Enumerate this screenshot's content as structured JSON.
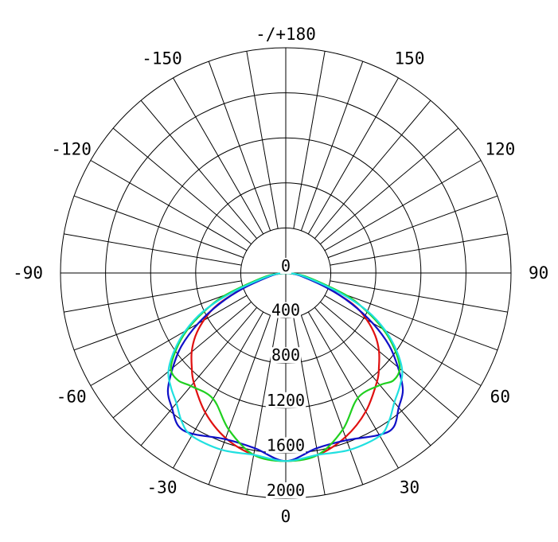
{
  "chart_data": {
    "type": "line",
    "subtype": "polar",
    "title": "",
    "angle_labels": [
      {
        "text": "-/+180",
        "angle": 180
      },
      {
        "text": "150",
        "angle": 150
      },
      {
        "text": "-150",
        "angle": -150
      },
      {
        "text": "120",
        "angle": 120
      },
      {
        "text": "-120",
        "angle": -120
      },
      {
        "text": "90",
        "angle": 90
      },
      {
        "text": "-90",
        "angle": -90
      },
      {
        "text": "60",
        "angle": 60
      },
      {
        "text": "-60",
        "angle": -60
      },
      {
        "text": "30",
        "angle": 30
      },
      {
        "text": "-30",
        "angle": -30
      },
      {
        "text": "0",
        "angle": 0
      }
    ],
    "radial_ticks": [
      0,
      400,
      800,
      1200,
      1600,
      2000
    ],
    "radial_labels": [
      "0",
      "400",
      "800",
      "1200",
      "1600",
      "2000"
    ],
    "rlim": [
      0,
      2000
    ],
    "angle_step": 10,
    "grid": true,
    "series": [
      {
        "color": "#e01010",
        "angles": [
          0,
          10,
          20,
          30,
          40,
          45,
          50,
          55,
          60,
          65,
          70,
          80,
          90
        ],
        "right": [
          1670,
          1640,
          1550,
          1420,
          1260,
          1170,
          1080,
          970,
          830,
          660,
          400,
          150,
          0
        ],
        "left": [
          1670,
          1640,
          1560,
          1430,
          1270,
          1180,
          1090,
          980,
          840,
          670,
          410,
          150,
          0
        ]
      },
      {
        "color": "#1010c8",
        "angles": [
          0,
          10,
          20,
          30,
          35,
          40,
          45,
          50,
          55,
          60,
          65,
          70,
          80,
          90
        ],
        "right": [
          1670,
          1580,
          1580,
          1660,
          1670,
          1560,
          1470,
          1300,
          1120,
          890,
          640,
          400,
          120,
          0
        ],
        "left": [
          1670,
          1580,
          1570,
          1650,
          1660,
          1570,
          1480,
          1310,
          1130,
          900,
          650,
          410,
          120,
          0
        ]
      },
      {
        "color": "#20d020",
        "angles": [
          0,
          10,
          20,
          30,
          40,
          45,
          50,
          55,
          60,
          65,
          70,
          80,
          90
        ],
        "right": [
          1670,
          1640,
          1480,
          1280,
          1300,
          1350,
          1320,
          1180,
          1000,
          780,
          560,
          180,
          0
        ],
        "left": [
          1670,
          1640,
          1480,
          1290,
          1310,
          1350,
          1330,
          1190,
          1010,
          790,
          560,
          180,
          0
        ]
      },
      {
        "color": "#20e0e0",
        "angles": [
          0,
          10,
          20,
          30,
          35,
          40,
          45,
          50,
          55,
          60,
          65,
          70,
          80,
          90
        ],
        "right": [
          1670,
          1640,
          1670,
          1670,
          1600,
          1500,
          1430,
          1350,
          1200,
          1020,
          800,
          500,
          150,
          0
        ],
        "left": [
          1670,
          1640,
          1670,
          1670,
          1610,
          1510,
          1440,
          1360,
          1210,
          1030,
          810,
          510,
          150,
          0
        ]
      }
    ]
  }
}
